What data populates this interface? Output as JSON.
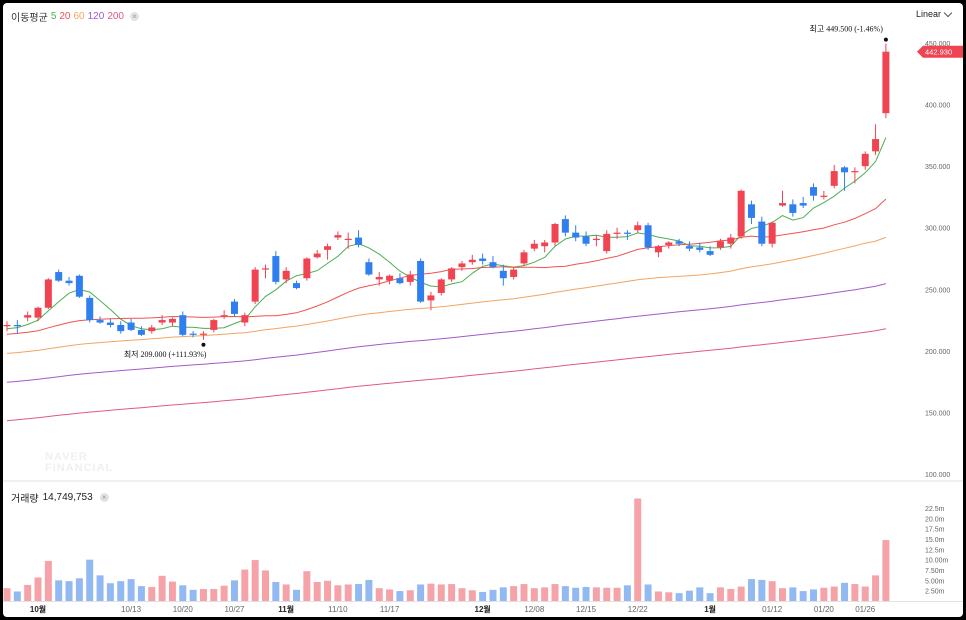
{
  "legend": {
    "title": "이동평균",
    "items": [
      {
        "label": "5",
        "color": "#4caf50"
      },
      {
        "label": "20",
        "color": "#ef5350"
      },
      {
        "label": "60",
        "color": "#f4a460"
      },
      {
        "label": "120",
        "color": "#a05cc8"
      },
      {
        "label": "200",
        "color": "#e0578f"
      }
    ],
    "close_glyph": "×"
  },
  "scale_label": "Linear",
  "volume_legend": {
    "title": "거래량",
    "value": "14,749,753",
    "close_glyph": "×"
  },
  "watermark": {
    "line1": "NAVER",
    "line2": "FINANCIAL"
  },
  "colors": {
    "up": "#f04452",
    "down": "#2f7fef",
    "vol_up": "#f5a3a8",
    "vol_down": "#93b9f3"
  },
  "chart_data": {
    "type": "candlestick",
    "price_axis": {
      "min": 100000,
      "max": 450000,
      "ticks": [
        "100.000",
        "150.000",
        "200.000",
        "250.000",
        "300.000",
        "350.000",
        "400.000",
        "450.000"
      ]
    },
    "volume_axis": {
      "min": 0,
      "max": 22500000,
      "ticks": [
        "2.50m",
        "5.00m",
        "7.50m",
        "10.00m",
        "12.5m",
        "15.0m",
        "17.5m",
        "20.0m",
        "22.5m"
      ]
    },
    "x_ticks": [
      {
        "label": "10월",
        "bold": true,
        "index": 3
      },
      {
        "label": "10/13",
        "bold": false,
        "index": 12
      },
      {
        "label": "10/20",
        "bold": false,
        "index": 17
      },
      {
        "label": "10/27",
        "bold": false,
        "index": 22
      },
      {
        "label": "11월",
        "bold": true,
        "index": 27
      },
      {
        "label": "11/10",
        "bold": false,
        "index": 32
      },
      {
        "label": "11/17",
        "bold": false,
        "index": 37
      },
      {
        "label": "12월",
        "bold": true,
        "index": 46
      },
      {
        "label": "12/08",
        "bold": false,
        "index": 51
      },
      {
        "label": "12/15",
        "bold": false,
        "index": 56
      },
      {
        "label": "12/22",
        "bold": false,
        "index": 61
      },
      {
        "label": "1월",
        "bold": true,
        "index": 68
      },
      {
        "label": "01/12",
        "bold": false,
        "index": 74
      },
      {
        "label": "01/20",
        "bold": false,
        "index": 79
      },
      {
        "label": "01/26",
        "bold": false,
        "index": 83
      }
    ],
    "current_price": {
      "label": "442.930",
      "value": 442930
    },
    "high_annotation": {
      "label": "최고",
      "text": "449.500 (-1.46%)",
      "value": 449500,
      "index": 85
    },
    "low_annotation": {
      "label": "최저",
      "text": "209.000 (+111.93%)",
      "value": 209000,
      "index": 19
    },
    "candles": [
      {
        "o": 220000,
        "h": 224000,
        "l": 216000,
        "c": 221000
      },
      {
        "o": 221000,
        "h": 225000,
        "l": 214000,
        "c": 220000
      },
      {
        "o": 227000,
        "h": 232000,
        "l": 224000,
        "c": 229000
      },
      {
        "o": 227000,
        "h": 236000,
        "l": 224000,
        "c": 235000
      },
      {
        "o": 235000,
        "h": 259000,
        "l": 234000,
        "c": 258000
      },
      {
        "o": 264000,
        "h": 266000,
        "l": 256000,
        "c": 257000
      },
      {
        "o": 257000,
        "h": 260000,
        "l": 253000,
        "c": 255000
      },
      {
        "o": 261000,
        "h": 262000,
        "l": 243000,
        "c": 244000
      },
      {
        "o": 243000,
        "h": 245000,
        "l": 223000,
        "c": 225000
      },
      {
        "o": 225000,
        "h": 228000,
        "l": 222000,
        "c": 223000
      },
      {
        "o": 223000,
        "h": 226000,
        "l": 219000,
        "c": 221000
      },
      {
        "o": 221000,
        "h": 224000,
        "l": 214000,
        "c": 216000
      },
      {
        "o": 223000,
        "h": 226000,
        "l": 216000,
        "c": 217000
      },
      {
        "o": 217000,
        "h": 220000,
        "l": 212000,
        "c": 213000
      },
      {
        "o": 216000,
        "h": 221000,
        "l": 214000,
        "c": 219000
      },
      {
        "o": 223000,
        "h": 229000,
        "l": 221000,
        "c": 225000
      },
      {
        "o": 223000,
        "h": 227000,
        "l": 220000,
        "c": 226000
      },
      {
        "o": 229000,
        "h": 232000,
        "l": 212000,
        "c": 213000
      },
      {
        "o": 214000,
        "h": 216000,
        "l": 211000,
        "c": 213000
      },
      {
        "o": 213000,
        "h": 216000,
        "l": 209000,
        "c": 214000
      },
      {
        "o": 217000,
        "h": 226000,
        "l": 215000,
        "c": 225000
      },
      {
        "o": 228000,
        "h": 233000,
        "l": 226000,
        "c": 229000
      },
      {
        "o": 240000,
        "h": 242000,
        "l": 228000,
        "c": 230000
      },
      {
        "o": 223000,
        "h": 231000,
        "l": 220000,
        "c": 229000
      },
      {
        "o": 240000,
        "h": 268000,
        "l": 238000,
        "c": 266000
      },
      {
        "o": 266000,
        "h": 270000,
        "l": 259000,
        "c": 267000
      },
      {
        "o": 277000,
        "h": 281000,
        "l": 254000,
        "c": 256000
      },
      {
        "o": 258000,
        "h": 268000,
        "l": 255000,
        "c": 265000
      },
      {
        "o": 255000,
        "h": 257000,
        "l": 250000,
        "c": 251000
      },
      {
        "o": 259000,
        "h": 276000,
        "l": 257000,
        "c": 275000
      },
      {
        "o": 276000,
        "h": 282000,
        "l": 275000,
        "c": 279000
      },
      {
        "o": 282000,
        "h": 287000,
        "l": 274000,
        "c": 285000
      },
      {
        "o": 292000,
        "h": 297000,
        "l": 290000,
        "c": 294000
      },
      {
        "o": 291000,
        "h": 296000,
        "l": 283000,
        "c": 291000
      },
      {
        "o": 292000,
        "h": 298000,
        "l": 284000,
        "c": 286000
      },
      {
        "o": 272000,
        "h": 275000,
        "l": 261000,
        "c": 262000
      },
      {
        "o": 258000,
        "h": 264000,
        "l": 253000,
        "c": 260000
      },
      {
        "o": 257000,
        "h": 262000,
        "l": 254000,
        "c": 261000
      },
      {
        "o": 259000,
        "h": 263000,
        "l": 254000,
        "c": 255000
      },
      {
        "o": 256000,
        "h": 265000,
        "l": 253000,
        "c": 262000
      },
      {
        "o": 273000,
        "h": 275000,
        "l": 239000,
        "c": 240000
      },
      {
        "o": 241000,
        "h": 248000,
        "l": 233000,
        "c": 245000
      },
      {
        "o": 247000,
        "h": 259000,
        "l": 245000,
        "c": 258000
      },
      {
        "o": 258000,
        "h": 268000,
        "l": 256000,
        "c": 267000
      },
      {
        "o": 268000,
        "h": 273000,
        "l": 265000,
        "c": 271000
      },
      {
        "o": 272000,
        "h": 278000,
        "l": 270000,
        "c": 274000
      },
      {
        "o": 275000,
        "h": 279000,
        "l": 270000,
        "c": 273000
      },
      {
        "o": 272000,
        "h": 277000,
        "l": 267000,
        "c": 268000
      },
      {
        "o": 265000,
        "h": 270000,
        "l": 253000,
        "c": 259000
      },
      {
        "o": 260000,
        "h": 268000,
        "l": 258000,
        "c": 266000
      },
      {
        "o": 271000,
        "h": 282000,
        "l": 269000,
        "c": 280000
      },
      {
        "o": 283000,
        "h": 290000,
        "l": 281000,
        "c": 287000
      },
      {
        "o": 285000,
        "h": 290000,
        "l": 280000,
        "c": 288000
      },
      {
        "o": 288000,
        "h": 304000,
        "l": 285000,
        "c": 303000
      },
      {
        "o": 307000,
        "h": 310000,
        "l": 293000,
        "c": 296000
      },
      {
        "o": 296000,
        "h": 302000,
        "l": 289000,
        "c": 292000
      },
      {
        "o": 293000,
        "h": 297000,
        "l": 285000,
        "c": 287000
      },
      {
        "o": 290000,
        "h": 294000,
        "l": 285000,
        "c": 291000
      },
      {
        "o": 281000,
        "h": 298000,
        "l": 279000,
        "c": 295000
      },
      {
        "o": 295000,
        "h": 300000,
        "l": 291000,
        "c": 296000
      },
      {
        "o": 296000,
        "h": 298000,
        "l": 290000,
        "c": 295000
      },
      {
        "o": 298000,
        "h": 305000,
        "l": 296000,
        "c": 302000
      },
      {
        "o": 302000,
        "h": 304000,
        "l": 282000,
        "c": 284000
      },
      {
        "o": 280000,
        "h": 286000,
        "l": 276000,
        "c": 285000
      },
      {
        "o": 286000,
        "h": 289000,
        "l": 283000,
        "c": 288000
      },
      {
        "o": 289000,
        "h": 291000,
        "l": 285000,
        "c": 287000
      },
      {
        "o": 285000,
        "h": 289000,
        "l": 281000,
        "c": 283000
      },
      {
        "o": 284000,
        "h": 288000,
        "l": 280000,
        "c": 282000
      },
      {
        "o": 281000,
        "h": 285000,
        "l": 277000,
        "c": 278000
      },
      {
        "o": 284000,
        "h": 291000,
        "l": 282000,
        "c": 289000
      },
      {
        "o": 287000,
        "h": 295000,
        "l": 283000,
        "c": 292000
      },
      {
        "o": 293000,
        "h": 331000,
        "l": 291000,
        "c": 330000
      },
      {
        "o": 319000,
        "h": 322000,
        "l": 303000,
        "c": 308000
      },
      {
        "o": 305000,
        "h": 309000,
        "l": 285000,
        "c": 287000
      },
      {
        "o": 287000,
        "h": 305000,
        "l": 284000,
        "c": 304000
      },
      {
        "o": 318000,
        "h": 330000,
        "l": 317000,
        "c": 320000
      },
      {
        "o": 319000,
        "h": 323000,
        "l": 309000,
        "c": 312000
      },
      {
        "o": 320000,
        "h": 325000,
        "l": 316000,
        "c": 318000
      },
      {
        "o": 333000,
        "h": 336000,
        "l": 322000,
        "c": 326000
      },
      {
        "o": 325000,
        "h": 330000,
        "l": 323000,
        "c": 326000
      },
      {
        "o": 334000,
        "h": 351000,
        "l": 332000,
        "c": 346000
      },
      {
        "o": 349000,
        "h": 350000,
        "l": 330000,
        "c": 345000
      },
      {
        "o": 345000,
        "h": 349000,
        "l": 336000,
        "c": 346000
      },
      {
        "o": 350000,
        "h": 362000,
        "l": 347000,
        "c": 360000
      },
      {
        "o": 362000,
        "h": 384000,
        "l": 359000,
        "c": 372000
      },
      {
        "o": 393000,
        "h": 449500,
        "l": 389000,
        "c": 442930
      }
    ],
    "volumes": [
      3100000,
      2300000,
      3900000,
      5700000,
      9700000,
      5000000,
      4800000,
      5500000,
      10000000,
      6200000,
      4300000,
      4800000,
      5300000,
      3600000,
      3400000,
      6100000,
      4700000,
      3800000,
      2700000,
      2900000,
      2900000,
      3700000,
      5000000,
      7600000,
      9900000,
      7400000,
      4600000,
      4000000,
      2700000,
      7200000,
      4600000,
      4900000,
      3800000,
      4000000,
      4100000,
      5100000,
      3100000,
      2800000,
      2400000,
      2600000,
      4000000,
      4200000,
      4000000,
      4100000,
      3100000,
      2600000,
      2200000,
      2700000,
      3300000,
      3600000,
      4100000,
      3100000,
      3300000,
      4100000,
      3600000,
      3200000,
      3400000,
      3300000,
      3200000,
      3200000,
      3800000,
      24800000,
      4000000,
      2300000,
      2100000,
      1900000,
      2500000,
      3300000,
      1900000,
      3300000,
      2900000,
      3500000,
      5300000,
      5100000,
      4800000,
      3100000,
      3300000,
      2400000,
      2800000,
      3200000,
      3500000,
      4400000,
      4100000,
      3500000,
      6200000,
      14749753
    ]
  }
}
